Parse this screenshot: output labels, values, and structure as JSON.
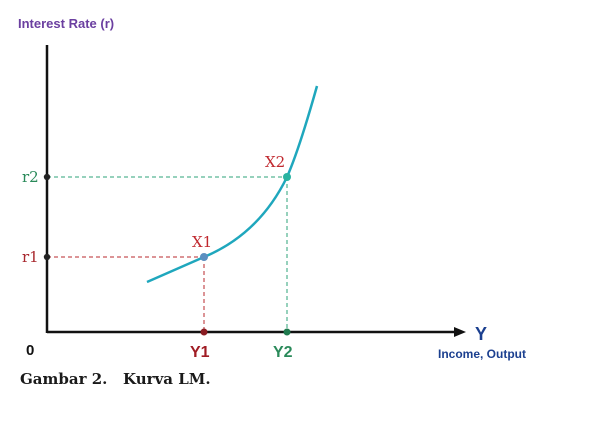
{
  "diagram": {
    "y_axis_title": "Interest Rate (r)",
    "x_axis_symbol": "Y",
    "x_axis_title": "Income, Output",
    "origin_label": "0",
    "r_labels": [
      "r2",
      "r1"
    ],
    "y_labels": [
      "Y1",
      "Y2"
    ],
    "points": [
      {
        "label": "X1",
        "income_label": "Y1",
        "rate_label": "r1"
      },
      {
        "label": "X2",
        "income_label": "Y2",
        "rate_label": "r2"
      }
    ],
    "curve_name": "LM"
  },
  "caption": "Gambar 2.   Kurva LM.",
  "colors": {
    "axis": "#111111",
    "curve": "#1fa7bd",
    "x1_guide": "#b8282e",
    "x2_guide": "#2ea37a",
    "point_x1": "#5b8fc0",
    "point_x2": "#29b3a0",
    "axis_title": "#6b3fa0",
    "income_title": "#1b3f8f",
    "r2_label": "#2a8a5a",
    "r1_label": "#a8282e"
  }
}
